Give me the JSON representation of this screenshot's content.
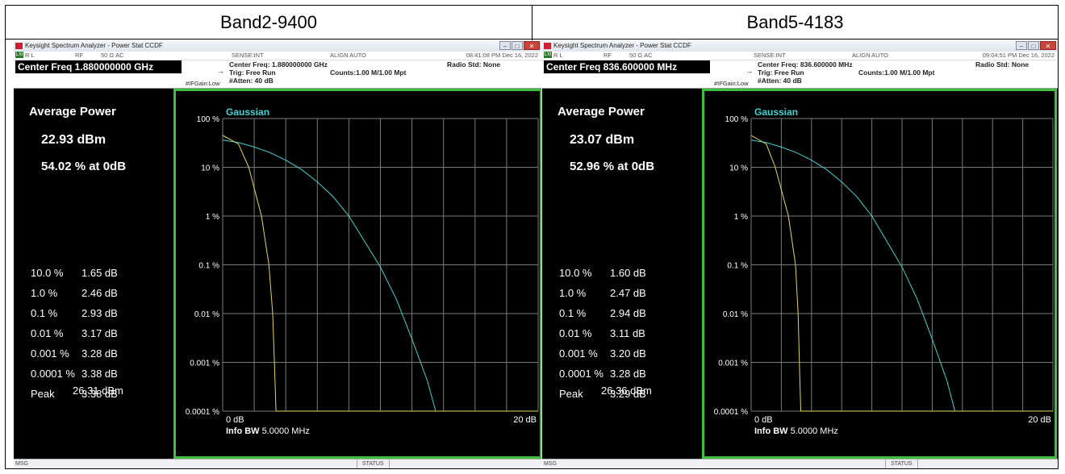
{
  "panels": [
    {
      "header": "Band2-9400",
      "window_title": "Keysight Spectrum Analyzer - Power Stat CCDF",
      "window_buttons": [
        "–",
        "□",
        "✕"
      ],
      "status_bar": {
        "rl": "R L",
        "rf": "RF",
        "imp": "50 Ω  AC",
        "sense": "SENSE:INT",
        "align": "ALIGN AUTO",
        "datetime": "08:41:08 PM Dec 16, 2022"
      },
      "center_freq_box": "Center Freq 1.880000000 GHz",
      "settings": {
        "center_freq": "Center Freq: 1.880000000 GHz",
        "trig": "Trig: Free Run",
        "atten": "#Atten: 40 dB",
        "counts": "Counts:1.00 M/1.00 Mpt",
        "radio_std": "Radio Std: None",
        "ifgain": "#IFGain:Low"
      },
      "avg_title": "Average Power",
      "avg_power": "22.93 dBm",
      "avg_pct": "54.02 % at 0dB",
      "stats": [
        {
          "p": "10.0 %",
          "v": "1.65 dB"
        },
        {
          "p": "1.0 %",
          "v": "2.46 dB"
        },
        {
          "p": "0.1 %",
          "v": "2.93 dB"
        },
        {
          "p": "0.01 %",
          "v": "3.17 dB"
        },
        {
          "p": "0.001 %",
          "v": "3.28 dB"
        },
        {
          "p": "0.0001 %",
          "v": "3.38 dB"
        },
        {
          "p": "Peak",
          "v": "3.38 dB"
        }
      ],
      "peak_dbm": "26.31 dBm",
      "graph": {
        "gaussian_label": "Gaussian",
        "y_ticks": [
          "100 %",
          "10 %",
          "1 %",
          "0.1 %",
          "0.01 %",
          "0.001 %",
          "0.0001 %"
        ],
        "x_left": "0 dB",
        "x_right": "20 dB",
        "info_bw_label": "Info BW",
        "info_bw_value": "5.0000 MHz",
        "measured_curve": [
          [
            0,
            45
          ],
          [
            1,
            30
          ],
          [
            1.65,
            10
          ],
          [
            2.46,
            1
          ],
          [
            2.93,
            0.1
          ],
          [
            3.17,
            0.01
          ],
          [
            3.28,
            0.001
          ],
          [
            3.38,
            0.0001
          ],
          [
            20,
            0.0001
          ]
        ],
        "gaussian_curve": [
          [
            0,
            36
          ],
          [
            1,
            32
          ],
          [
            2,
            26
          ],
          [
            3,
            20
          ],
          [
            4,
            14
          ],
          [
            5,
            9
          ],
          [
            6,
            5
          ],
          [
            7,
            2.5
          ],
          [
            8,
            1
          ],
          [
            9,
            0.3
          ],
          [
            10,
            0.09
          ],
          [
            11,
            0.02
          ],
          [
            12,
            0.003
          ],
          [
            13,
            0.0004
          ],
          [
            13.5,
            0.0001
          ]
        ]
      },
      "msg": {
        "msg": "MSG",
        "status": "STATUS"
      }
    },
    {
      "header": "Band5-4183",
      "window_title": "Keysight Spectrum Analyzer - Power Stat CCDF",
      "window_buttons": [
        "–",
        "□",
        "✕"
      ],
      "status_bar": {
        "rl": "R L",
        "rf": "RF",
        "imp": "50 Ω  AC",
        "sense": "SENSE:INT",
        "align": "ALIGN AUTO",
        "datetime": "09:04:51 PM Dec 16, 2022"
      },
      "center_freq_box": "Center Freq 836.600000 MHz",
      "settings": {
        "center_freq": "Center Freq: 836.600000 MHz",
        "trig": "Trig: Free Run",
        "atten": "#Atten: 40 dB",
        "counts": "Counts:1.00 M/1.00 Mpt",
        "radio_std": "Radio Std: None",
        "ifgain": "#IFGain:Low"
      },
      "avg_title": "Average Power",
      "avg_power": "23.07 dBm",
      "avg_pct": "52.96 % at 0dB",
      "stats": [
        {
          "p": "10.0 %",
          "v": "1.60 dB"
        },
        {
          "p": "1.0 %",
          "v": "2.47 dB"
        },
        {
          "p": "0.1 %",
          "v": "2.94 dB"
        },
        {
          "p": "0.01 %",
          "v": "3.11 dB"
        },
        {
          "p": "0.001 %",
          "v": "3.20 dB"
        },
        {
          "p": "0.0001 %",
          "v": "3.28 dB"
        },
        {
          "p": "Peak",
          "v": "3.29 dB"
        }
      ],
      "peak_dbm": "26.36 dBm",
      "graph": {
        "gaussian_label": "Gaussian",
        "y_ticks": [
          "100 %",
          "10 %",
          "1 %",
          "0.1 %",
          "0.01 %",
          "0.001 %",
          "0.0001 %"
        ],
        "x_left": "0 dB",
        "x_right": "20 dB",
        "info_bw_label": "Info BW",
        "info_bw_value": "5.0000 MHz",
        "measured_curve": [
          [
            0,
            45
          ],
          [
            1,
            30
          ],
          [
            1.6,
            10
          ],
          [
            2.47,
            1
          ],
          [
            2.94,
            0.1
          ],
          [
            3.11,
            0.01
          ],
          [
            3.2,
            0.001
          ],
          [
            3.29,
            0.0001
          ],
          [
            20,
            0.0001
          ]
        ],
        "gaussian_curve": [
          [
            0,
            36
          ],
          [
            1,
            32
          ],
          [
            2,
            26
          ],
          [
            3,
            20
          ],
          [
            4,
            14
          ],
          [
            5,
            9
          ],
          [
            6,
            5
          ],
          [
            7,
            2.5
          ],
          [
            8,
            1
          ],
          [
            9,
            0.3
          ],
          [
            10,
            0.09
          ],
          [
            11,
            0.02
          ],
          [
            12,
            0.003
          ],
          [
            13,
            0.0004
          ],
          [
            13.5,
            0.0001
          ]
        ]
      },
      "msg": {
        "msg": "MSG",
        "status": "STATUS"
      }
    }
  ],
  "colors": {
    "gaussian": "#3fd3d3",
    "measured": "#e6d65a",
    "graticule": "#7a7a7a",
    "frame": "#3fbf3f"
  }
}
